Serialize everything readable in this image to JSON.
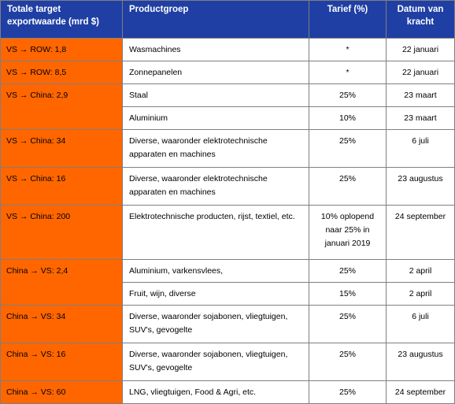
{
  "headers": {
    "col1": "Totale target\nexportwaarde (mrd $)",
    "col2": "Productgroep",
    "col3": "Tarief (%)",
    "col4": "Datum van\nkracht"
  },
  "rows": [
    {
      "group": "VS → ROW: 1,8",
      "product": "Wasmachines",
      "tariff": "*",
      "date": "22 januari"
    },
    {
      "group": "VS → ROW: 8,5",
      "product": "Zonnepanelen",
      "tariff": "*",
      "date": "22 januari"
    },
    {
      "group": "VS → China: 2,9",
      "product": "Staal",
      "tariff": "25%",
      "date": "23 maart"
    },
    {
      "product": "Aluminium",
      "tariff": "10%",
      "date": "23 maart"
    },
    {
      "group": "VS → China: 34",
      "product": "Diverse, waaronder elektrotechnische\napparaten en machines",
      "tariff": "25%",
      "date": "6 juli"
    },
    {
      "group": "VS → China: 16",
      "product": "Diverse, waaronder elektrotechnische\napparaten en machines",
      "tariff": "25%",
      "date": "23 augustus"
    },
    {
      "group": "VS → China: 200",
      "product": "Elektrotechnische producten, rijst, textiel, etc.",
      "tariff": "10% oplopend\nnaar 25% in\njanuari 2019",
      "date": "24 september"
    },
    {
      "group": "China → VS: 2,4",
      "product": "Aluminium, varkensvlees,",
      "tariff": "25%",
      "date": "2 april"
    },
    {
      "product": "Fruit, wijn, diverse",
      "tariff": "15%",
      "date": "2 april"
    },
    {
      "group": "China → VS: 34",
      "product": "Diverse, waaronder sojabonen, vliegtuigen,\nSUV's, gevogelte",
      "tariff": "25%",
      "date": "6 juli"
    },
    {
      "group": "China → VS: 16",
      "product": "Diverse, waaronder sojabonen, vliegtuigen,\nSUV's, gevogelte",
      "tariff": "25%",
      "date": "23 augustus"
    },
    {
      "group": "China → VS: 60",
      "product": "LNG, vliegtuigen, Food & Agri, etc.",
      "tariff": "25%",
      "date": "24 september"
    }
  ],
  "colors": {
    "header": "#1f3fa4",
    "group": "#ff6600",
    "border": "#7f7f7f"
  }
}
